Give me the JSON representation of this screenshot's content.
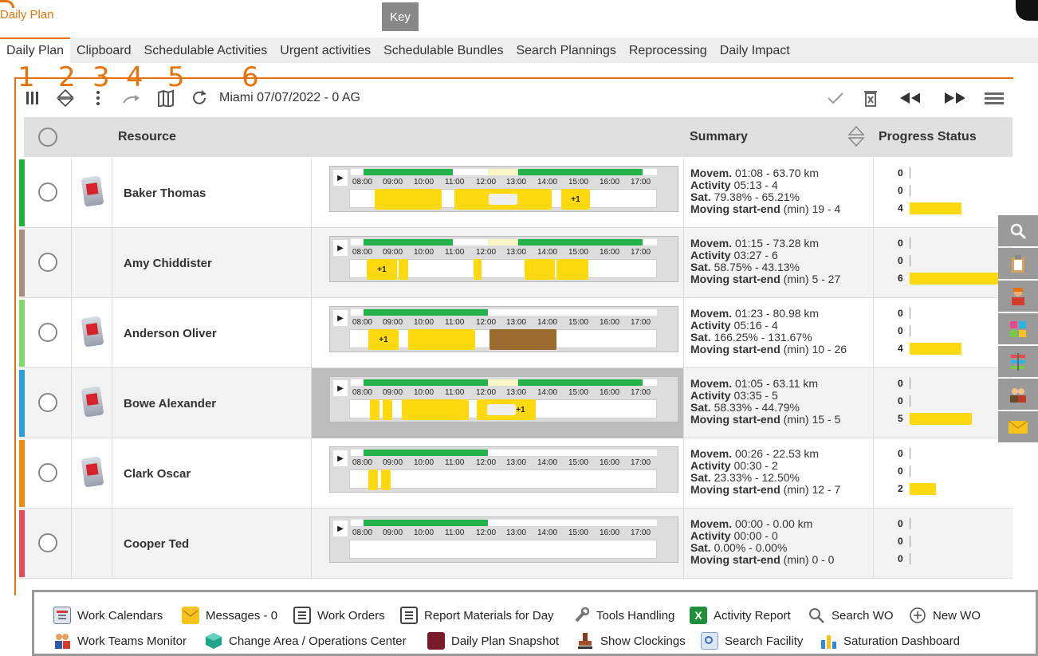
{
  "app": {
    "title": "Daily Plan",
    "key_label": "Key"
  },
  "tabs": [
    {
      "label": "Daily Plan"
    },
    {
      "label": "Clipboard"
    },
    {
      "label": "Schedulable Activities"
    },
    {
      "label": "Urgent activities"
    },
    {
      "label": "Schedulable Bundles"
    },
    {
      "label": "Search Plannings"
    },
    {
      "label": "Reprocessing"
    },
    {
      "label": "Daily Impact"
    }
  ],
  "annotations": [
    "1",
    "2",
    "3",
    "4",
    "5",
    "6"
  ],
  "toolbar": {
    "context": "Miami 07/07/2022 - 0 AG"
  },
  "grid": {
    "col_resource": "Resource",
    "col_summary": "Summary",
    "col_progress": "Progress Status"
  },
  "hours": [
    "08:00",
    "09:00",
    "10:00",
    "11:00",
    "12:00",
    "13:00",
    "14:00",
    "15:00",
    "16:00",
    "17:00"
  ],
  "colors": {
    "accent": "#e8730c",
    "green": "#23b24b",
    "yellow": "#ffd90f",
    "brown": "#9c6a2e"
  },
  "rows": [
    {
      "name": "Baker Thomas",
      "color": "#1db33b",
      "device": true,
      "movem": "01:08 - 63.70 km",
      "activity": "05:13 - 4",
      "sat": "79.38% - 65.21%",
      "moving": "19 - 4",
      "progress": [
        "0",
        "0",
        "4"
      ],
      "progress_fill": [
        0,
        0,
        0.5
      ]
    },
    {
      "name": "Amy Chiddister",
      "color": "#a88e7a",
      "device": false,
      "movem": "01:15 - 73.28 km",
      "activity": "03:27 - 6",
      "sat": "58.75% - 43.13%",
      "moving": "5 - 27",
      "progress": [
        "0",
        "0",
        "6"
      ],
      "progress_fill": [
        0,
        0,
        0.85
      ]
    },
    {
      "name": "Anderson Oliver",
      "color": "#7fd86a",
      "device": true,
      "movem": "01:23 - 80.98 km",
      "activity": "05:16 - 4",
      "sat": "166.25% - 131.67%",
      "moving": "10 - 26",
      "progress": [
        "0",
        "0",
        "4"
      ],
      "progress_fill": [
        0,
        0,
        0.5
      ]
    },
    {
      "name": "Bowe Alexander",
      "color": "#2a9fd8",
      "device": true,
      "movem": "01:05 - 63.11 km",
      "activity": "03:35 - 5",
      "sat": "58.33% - 44.79%",
      "moving": "15 - 5",
      "progress": [
        "0",
        "0",
        "5"
      ],
      "progress_fill": [
        0,
        0,
        0.6
      ]
    },
    {
      "name": "Clark Oscar",
      "color": "#f0890f",
      "device": true,
      "movem": "00:26 - 22.53 km",
      "activity": "00:30 - 2",
      "sat": "23.33% - 12.50%",
      "moving": "12 - 7",
      "progress": [
        "0",
        "0",
        "2"
      ],
      "progress_fill": [
        0,
        0,
        0.25
      ]
    },
    {
      "name": "Cooper Ted",
      "color": "#e64b59",
      "device": false,
      "movem": "00:00 - 0.00 km",
      "activity": "00:00 - 0",
      "sat": "0.00% - 0.00%",
      "moving": "0 - 0",
      "progress": [
        "0",
        "0",
        "0"
      ],
      "progress_fill": [
        0,
        0,
        0
      ]
    }
  ],
  "summary_labels": {
    "movem": "Movem.",
    "activity": "Activity",
    "sat": "Sat.",
    "moving": "Moving start-end",
    "moving_unit": "(min)"
  },
  "footer": [
    {
      "label": "Work Calendars",
      "icon": "calendar-icon"
    },
    {
      "label": "Messages - 0",
      "icon": "envelope-icon"
    },
    {
      "label": "Work Orders",
      "icon": "document-icon"
    },
    {
      "label": "Report Materials for Day",
      "icon": "report-icon"
    },
    {
      "label": "Tools Handling",
      "icon": "wrench-icon"
    },
    {
      "label": "Activity Report",
      "icon": "excel-icon"
    },
    {
      "label": "Search WO",
      "icon": "search-icon"
    },
    {
      "label": "New WO",
      "icon": "plus-circle-icon"
    },
    {
      "label": "Work Teams Monitor",
      "icon": "team-icon"
    },
    {
      "label": "Change Area / Operations Center",
      "icon": "cube-icon"
    },
    {
      "label": "Daily Plan Snapshot",
      "icon": "book-icon"
    },
    {
      "label": "Show Clockings",
      "icon": "stamp-icon"
    },
    {
      "label": "Search Facility",
      "icon": "facility-icon"
    },
    {
      "label": "Saturation Dashboard",
      "icon": "dashboard-icon"
    }
  ]
}
